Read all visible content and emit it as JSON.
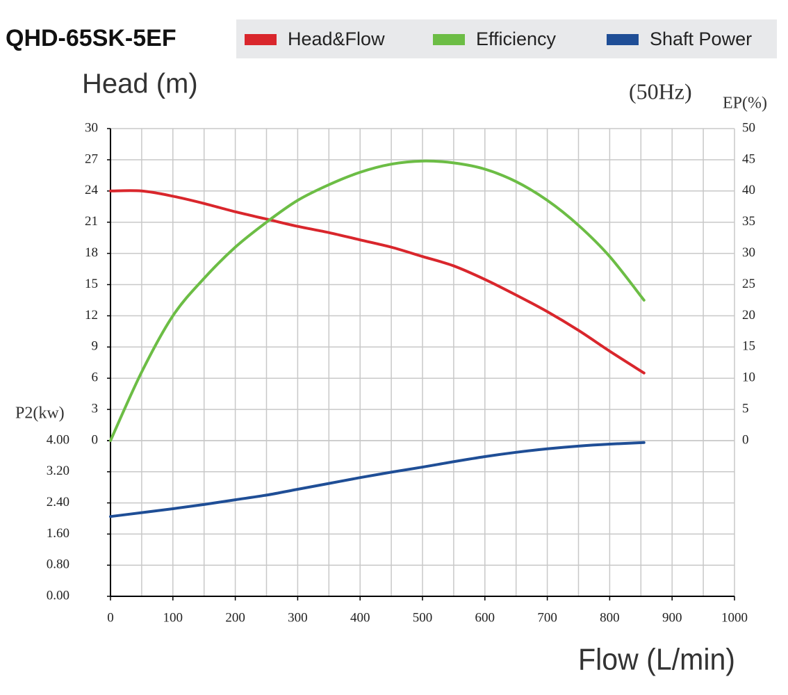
{
  "chart_data": {
    "type": "line",
    "title": "QHD-65SK-5EF",
    "y_label": "Head (m)",
    "frequency_label": "(50Hz)",
    "y2_label": "EP(%)",
    "p2_label": "P2(kw)",
    "x_label": "Flow (L/min)",
    "grid": true,
    "legend": "top",
    "x": [
      0,
      50,
      100,
      150,
      200,
      250,
      300,
      350,
      400,
      450,
      500,
      550,
      600,
      650,
      700,
      750,
      800,
      855
    ],
    "xlim": [
      0,
      1000
    ],
    "xticks": [
      0,
      100,
      200,
      300,
      400,
      500,
      600,
      700,
      800,
      900,
      1000
    ],
    "ylim": [
      0,
      30
    ],
    "yticks": [
      0,
      3,
      6,
      9,
      12,
      15,
      18,
      21,
      24,
      27,
      30
    ],
    "y2lim": [
      0,
      50
    ],
    "y2ticks": [
      0,
      5,
      10,
      15,
      20,
      25,
      30,
      35,
      40,
      45,
      50
    ],
    "p2lim": [
      0,
      4
    ],
    "p2ticks": [
      {
        "value": 0,
        "label": "0.00"
      },
      {
        "value": 0.8,
        "label": "0.80"
      },
      {
        "value": 1.6,
        "label": "1.60"
      },
      {
        "value": 2.4,
        "label": "2.40"
      },
      {
        "value": 3.2,
        "label": "3.20"
      },
      {
        "value": 4,
        "label": "4.00"
      }
    ],
    "series": [
      {
        "name": "Head&Flow",
        "color": "#d9262c",
        "axis": "y",
        "values": [
          24,
          24,
          23.5,
          22.8,
          22,
          21.3,
          20.6,
          20,
          19.3,
          18.6,
          17.7,
          16.8,
          15.5,
          14,
          12.4,
          10.6,
          8.6,
          6.5
        ]
      },
      {
        "name": "Efficiency",
        "color": "#6cbd45",
        "axis": "y2",
        "values": [
          0,
          11,
          20,
          26,
          31,
          35,
          38.5,
          41,
          43,
          44.3,
          44.8,
          44.5,
          43.5,
          41.5,
          38.5,
          34.5,
          29.5,
          22.5
        ]
      },
      {
        "name": "Shaft Power",
        "color": "#1f4e96",
        "axis": "p2",
        "values": [
          2.05,
          2.15,
          2.25,
          2.36,
          2.48,
          2.6,
          2.75,
          2.9,
          3.05,
          3.19,
          3.32,
          3.46,
          3.59,
          3.7,
          3.79,
          3.86,
          3.91,
          3.95
        ]
      }
    ]
  }
}
